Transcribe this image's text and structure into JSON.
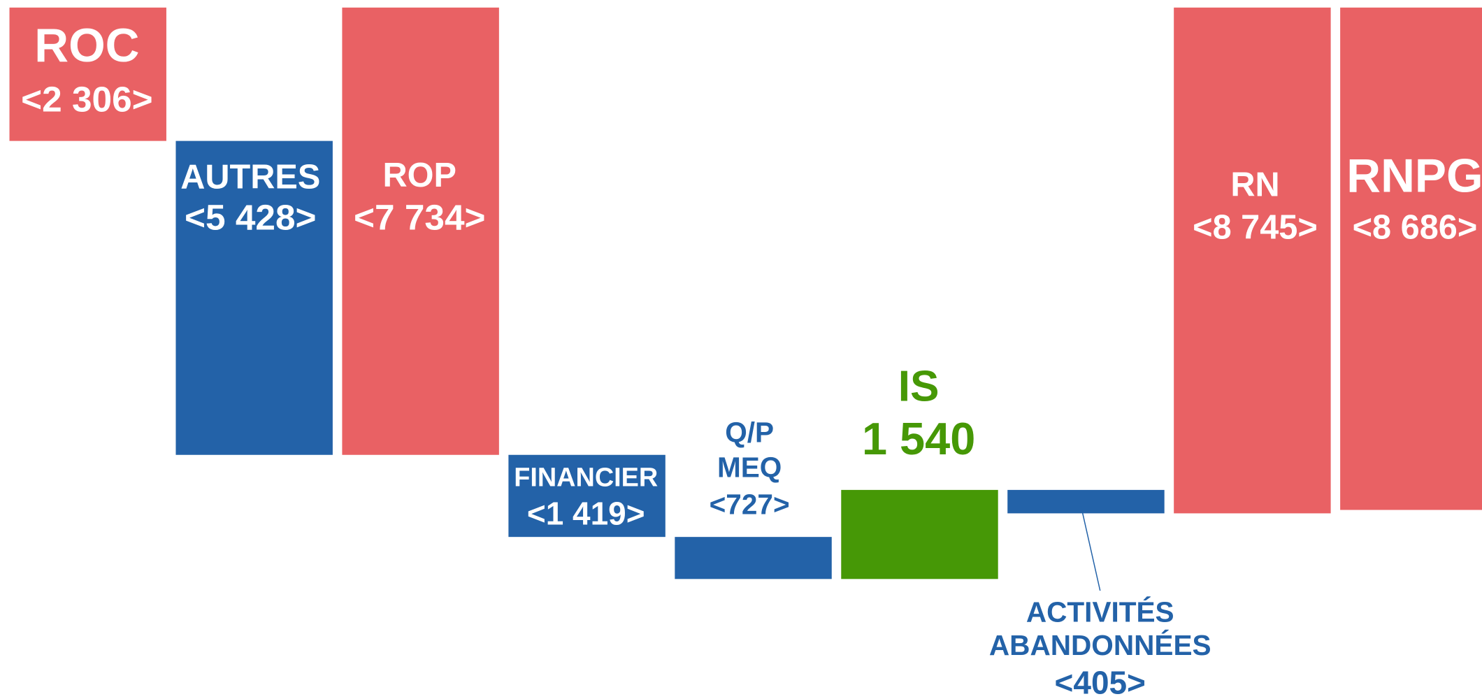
{
  "chart_data": {
    "type": "waterfall",
    "categories": [
      "ROC",
      "AUTRES",
      "ROP",
      "FINANCIER",
      [
        "Q/P",
        "MEQ"
      ],
      "IS",
      [
        "ACTIVITÉS",
        "ABANDONNÉES"
      ],
      "RN",
      "RNPG"
    ],
    "values": [
      -2306,
      -5428,
      -7734,
      -1419,
      -727,
      1540,
      -405,
      -8745,
      -8686
    ],
    "value_labels": [
      "<2 306>",
      "<5 428>",
      "<7 734>",
      "<1 419>",
      "<727>",
      "1 540",
      "<405>",
      "<8 745>",
      "<8 686>"
    ],
    "measure": [
      "absolute",
      "relative",
      "absolute",
      "relative",
      "relative",
      "relative",
      "relative",
      "absolute",
      "absolute"
    ],
    "colors": [
      "#e96164",
      "#2362a8",
      "#e96164",
      "#2362a8",
      "#2362a8",
      "#469806",
      "#2362a8",
      "#e96164",
      "#e96164"
    ]
  }
}
